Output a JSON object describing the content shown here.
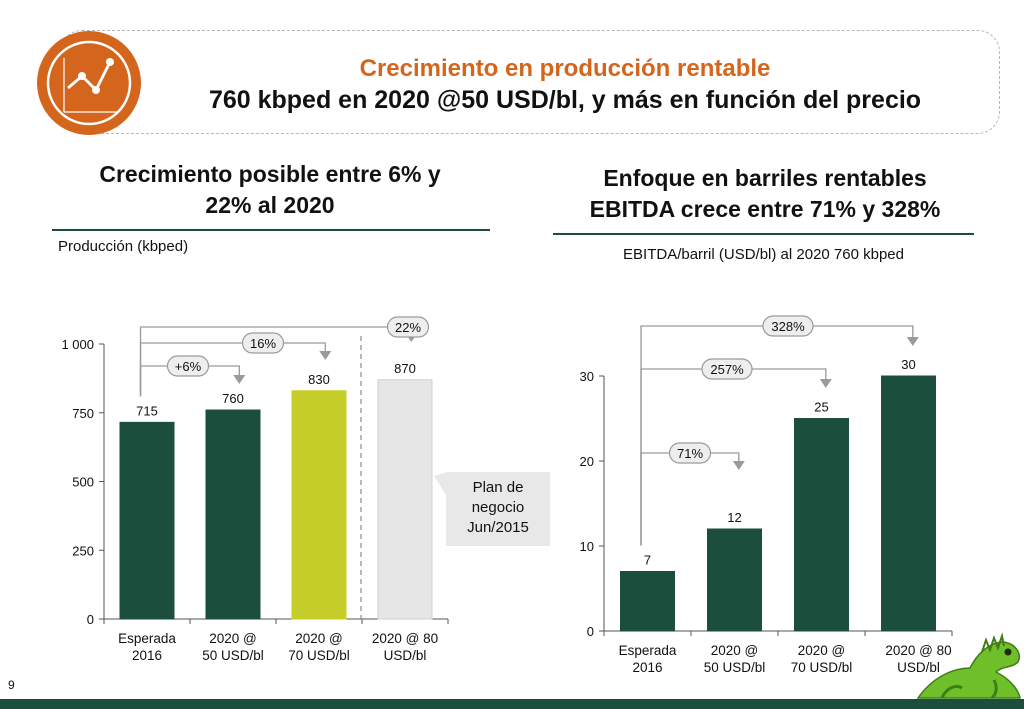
{
  "header": {
    "title": "Crecimiento en producción rentable",
    "subtitle": "760 kbped en 2020 @50 USD/bl, y más en función del precio"
  },
  "left_panel": {
    "title_line1": "Crecimiento posible entre 6% y",
    "title_line2": "22% al 2020",
    "subtitle": "Producción (kbped)",
    "callout": {
      "line1": "Plan de",
      "line2": "negocio",
      "line3": "Jun/2015"
    }
  },
  "right_panel": {
    "title_line1": "Enfoque en barriles rentables",
    "title_line2": "EBITDA crece entre 71% y 328%",
    "subtitle": "EBITDA/barril (USD/bl) al 2020 760 kbped"
  },
  "page_number": "9",
  "colors": {
    "dark_green": "#1b4e3c",
    "lime": "#c6cf2a",
    "light_gray": "#e6e6e6",
    "orange": "#d4651c",
    "pill_fill": "#eeeeee"
  },
  "chart_data": [
    {
      "type": "bar",
      "categories": [
        [
          "Esperada",
          "2016"
        ],
        [
          "2020 @",
          "50 USD/bl"
        ],
        [
          "2020 @",
          "70 USD/bl"
        ],
        [
          "2020 @ 80",
          "USD/bl"
        ]
      ],
      "values": [
        715,
        760,
        830,
        870
      ],
      "value_labels": [
        "715",
        "760",
        "830",
        "870"
      ],
      "bar_colors": [
        "#1b4e3c",
        "#1b4e3c",
        "#c6cf2a",
        "#e6e6e6"
      ],
      "ylim": [
        0,
        1000
      ],
      "yticks": [
        0,
        250,
        500,
        750,
        1000
      ],
      "ytick_labels": [
        "0",
        "250",
        "500",
        "750",
        "1 000"
      ],
      "annotations": [
        {
          "label": "+6%",
          "to_index": 1
        },
        {
          "label": "16%",
          "to_index": 2
        },
        {
          "label": "22%",
          "to_index": 3
        }
      ]
    },
    {
      "type": "bar",
      "categories": [
        [
          "Esperada",
          "2016"
        ],
        [
          "2020 @",
          "50 USD/bl"
        ],
        [
          "2020 @",
          "70 USD/bl"
        ],
        [
          "2020 @ 80",
          "USD/bl"
        ]
      ],
      "values": [
        7,
        12,
        25,
        30
      ],
      "value_labels": [
        "7",
        "12",
        "25",
        "30"
      ],
      "bar_colors": [
        "#1b4e3c",
        "#1b4e3c",
        "#1b4e3c",
        "#1b4e3c"
      ],
      "ylim": [
        0,
        30
      ],
      "yticks": [
        0,
        10,
        20,
        30
      ],
      "ytick_labels": [
        "0",
        "10",
        "20",
        "30"
      ],
      "annotations": [
        {
          "label": "71%",
          "to_index": 1
        },
        {
          "label": "257%",
          "to_index": 2
        },
        {
          "label": "328%",
          "to_index": 3
        }
      ]
    }
  ]
}
